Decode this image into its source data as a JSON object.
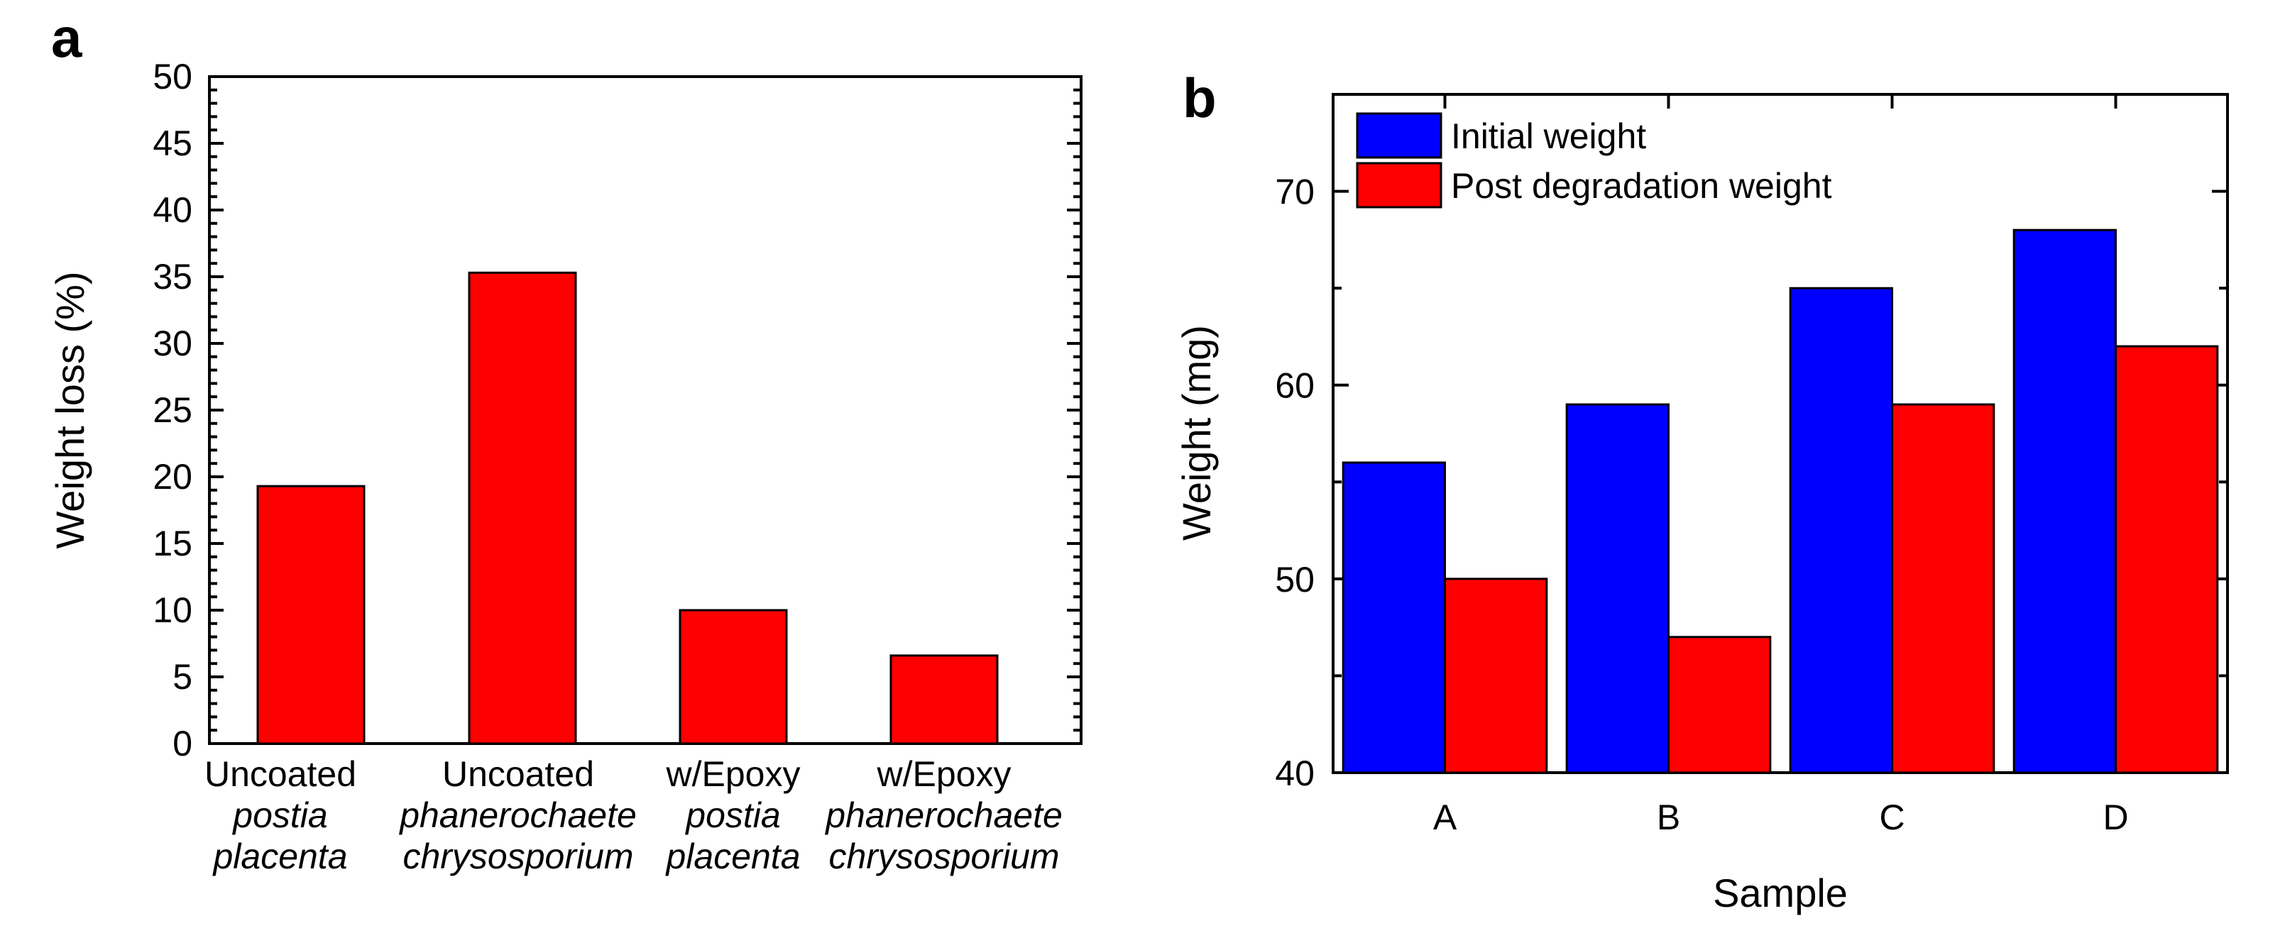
{
  "chart_data": [
    {
      "type": "bar",
      "panel": "a",
      "title": "",
      "xlabel": "",
      "ylabel": "Weight loss (%)",
      "ylim": [
        0,
        50
      ],
      "yticks": [
        "0",
        "5",
        "10",
        "15",
        "20",
        "25",
        "30",
        "35",
        "40",
        "45",
        "50"
      ],
      "categories": [
        {
          "line1": "Uncoated",
          "line2": "postia",
          "line3": "placenta"
        },
        {
          "line1": "Uncoated",
          "line2": "phanerochaete",
          "line3": "chrysosporium"
        },
        {
          "line1": "w/Epoxy",
          "line2": "postia",
          "line3": "placenta"
        },
        {
          "line1": "w/Epoxy",
          "line2": "phanerochaete",
          "line3": "chrysosporium"
        }
      ],
      "values": [
        19.3,
        35.3,
        10.0,
        6.6
      ],
      "color": "#ff0000"
    },
    {
      "type": "bar",
      "panel": "b",
      "title": "",
      "xlabel": "Sample",
      "ylabel": "Weight (mg)",
      "ylim": [
        40,
        75
      ],
      "yticks": [
        "40",
        "50",
        "60",
        "70"
      ],
      "categories": [
        "A",
        "B",
        "C",
        "D"
      ],
      "series": [
        {
          "name": "Initial weight",
          "values": [
            56,
            59,
            65,
            68
          ],
          "color": "#0000ff"
        },
        {
          "name": "Post degradation weight",
          "values": [
            50,
            47,
            59,
            62
          ],
          "color": "#ff0000"
        }
      ],
      "legend_position": "top-left"
    }
  ]
}
